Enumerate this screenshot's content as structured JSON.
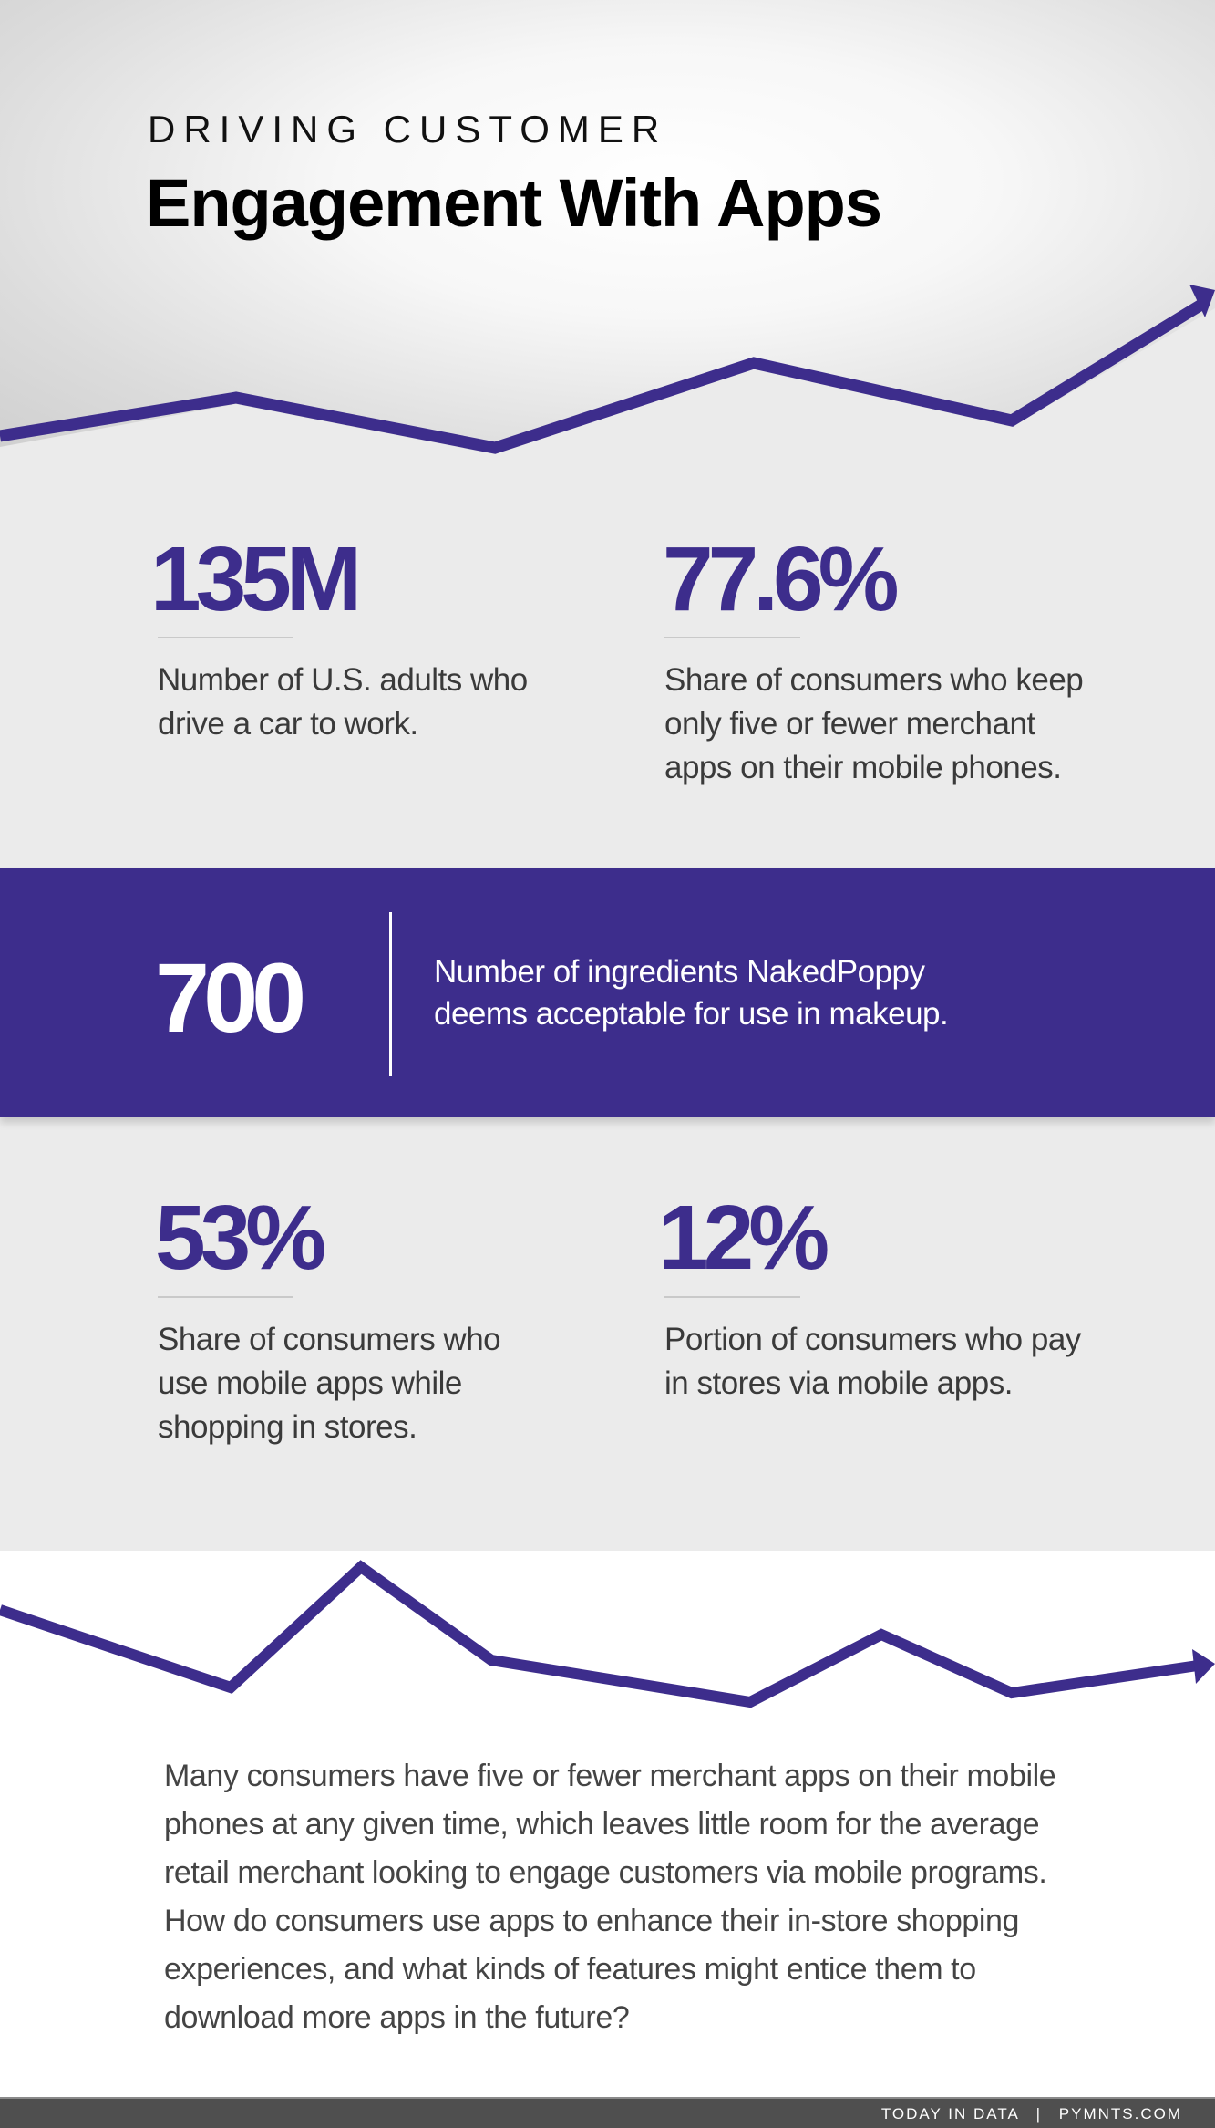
{
  "header": {
    "kicker": "DRIVING CUSTOMER",
    "title": "Engagement With Apps"
  },
  "stats_top": [
    {
      "value": "135M",
      "description": "Number of U.S. adults who drive a car to work."
    },
    {
      "value": "77.6%",
      "description": "Share of consumers who keep only five or fewer merchant apps on their mobile phones."
    }
  ],
  "feature": {
    "value": "700",
    "description_lines": [
      "Number of ingredients NakedPoppy",
      "deems acceptable for use in makeup."
    ]
  },
  "stats_bottom": [
    {
      "value": "53%",
      "description": "Share of consumers who use mobile apps while shopping in stores."
    },
    {
      "value": "12%",
      "description": "Portion of consumers who pay in stores via mobile apps."
    }
  ],
  "summary": "Many consumers have five or fewer merchant apps on their mobile phones at any given time, which leaves little room for the average retail merchant looking to engage customers via mobile programs. How do consumers use apps to enhance their in-store shopping experiences, and what kinds of features might entice them to download more apps in the future?",
  "footer": {
    "left": "TODAY IN DATA",
    "separator": "|",
    "right": "PYMNTS.COM"
  },
  "colors": {
    "accent": "#3d2d8c",
    "background": "#ebebeb",
    "footer": "#4f4f4f"
  }
}
